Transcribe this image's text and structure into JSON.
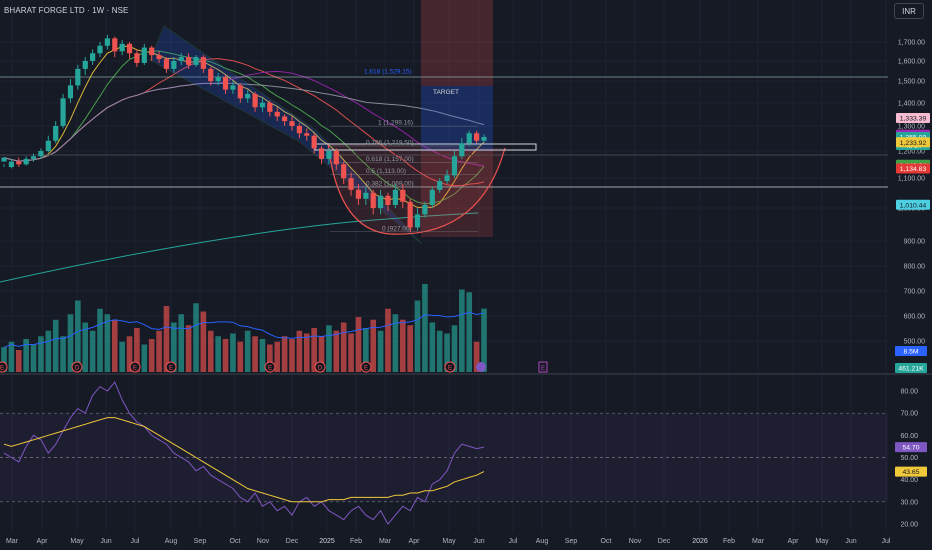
{
  "header": {
    "title": "BHARAT FORGE LTD · 1W · NSE",
    "currency": "INR"
  },
  "colors": {
    "up": "#26a69a",
    "down": "#ef5350",
    "bg": "#161a25",
    "grid": "#1f2330",
    "text": "#b2b5be",
    "fib": "#2962ff",
    "rsi": "#7e57c2",
    "rsi_ma": "#f0c93a"
  },
  "chart_data": {
    "type": "candlestick",
    "title": "BHARAT FORGE LTD · 1W · NSE",
    "x_ticks": [
      "Mar",
      "Apr",
      "May",
      "Jun",
      "Jul",
      "Aug",
      "Sep",
      "Oct",
      "Nov",
      "Dec",
      "2025",
      "Feb",
      "Mar",
      "Apr",
      "May",
      "Jun",
      "Jul",
      "Aug",
      "Sep",
      "Oct",
      "Nov",
      "Dec",
      "2026",
      "Feb",
      "Mar",
      "Apr",
      "May",
      "Jun",
      "Jul"
    ],
    "price_ticks": [
      "1,700.00",
      "1,600.00",
      "1,500.00",
      "1,400.00",
      "1,300.00",
      "1,200.00",
      "1,100.00",
      "1,000.00",
      "900.00",
      "800.00",
      "700.00",
      "600.00",
      "500.00"
    ],
    "price_range": [
      895,
      1730
    ],
    "scale": "log",
    "price_labels": [
      {
        "text": "1,333.39",
        "v": 1333.39,
        "color": "#f8bbd0",
        "fg": "#131722"
      },
      {
        "text": "1,264.31",
        "v": 1264.31,
        "color": "#9c27b0",
        "fg": "#ffffff"
      },
      {
        "text": "1,255.00",
        "v": 1255.0,
        "color": "#26a69a",
        "fg": "#ffffff",
        "sub": "4d 5h"
      },
      {
        "text": "1,233.92",
        "v": 1233.92,
        "color": "#f0c93a",
        "fg": "#131722"
      },
      {
        "text": "1,148.24",
        "v": 1148.24,
        "color": "#43a047",
        "fg": "#ffffff"
      },
      {
        "text": "1,134.83",
        "v": 1134.83,
        "color": "#e53935",
        "fg": "#ffffff"
      },
      {
        "text": "1,010.44",
        "v": 1010.44,
        "color": "#4dd0e1",
        "fg": "#131722"
      }
    ],
    "fib_labels": [
      {
        "text": "1.618 (1,529.15)",
        "v": 1529.15,
        "color": "#2962ff"
      },
      {
        "text": "1 (1,299.16)",
        "v": 1299.16,
        "color": "#9598a1"
      },
      {
        "text": "0.786 (1,219.50)",
        "v": 1219.5,
        "color": "#9598a1"
      },
      {
        "text": "0.618 (1,157.00)",
        "v": 1157.0,
        "color": "#9598a1"
      },
      {
        "text": "0.5 (1,113.00)",
        "v": 1113.0,
        "color": "#9598a1"
      },
      {
        "text": "0.382 (1,069.00)",
        "v": 1069.0,
        "color": "#9598a1"
      },
      {
        "text": "0 (927.00)",
        "v": 927.0,
        "color": "#9598a1"
      }
    ],
    "target_label": "TARGET",
    "horizontal_levels": [
      1520,
      1255,
      1158
    ],
    "candles": [
      [
        1160,
        1175,
        1150,
        1140
      ],
      [
        1140,
        1160,
        1170,
        1135
      ],
      [
        1160,
        1150,
        1175,
        1140
      ],
      [
        1150,
        1170,
        1180,
        1145
      ],
      [
        1170,
        1180,
        1190,
        1160
      ],
      [
        1180,
        1200,
        1210,
        1170
      ],
      [
        1200,
        1240,
        1260,
        1195
      ],
      [
        1240,
        1300,
        1320,
        1230
      ],
      [
        1300,
        1420,
        1440,
        1290
      ],
      [
        1420,
        1480,
        1510,
        1400
      ],
      [
        1480,
        1560,
        1580,
        1460
      ],
      [
        1560,
        1600,
        1620,
        1530
      ],
      [
        1600,
        1640,
        1660,
        1580
      ],
      [
        1640,
        1680,
        1700,
        1620
      ],
      [
        1680,
        1720,
        1740,
        1660
      ],
      [
        1720,
        1650,
        1730,
        1620
      ],
      [
        1650,
        1690,
        1710,
        1630
      ],
      [
        1690,
        1640,
        1700,
        1610
      ],
      [
        1640,
        1590,
        1660,
        1570
      ],
      [
        1590,
        1670,
        1690,
        1580
      ],
      [
        1670,
        1630,
        1680,
        1600
      ],
      [
        1630,
        1610,
        1650,
        1590
      ],
      [
        1610,
        1560,
        1620,
        1540
      ],
      [
        1560,
        1600,
        1620,
        1540
      ],
      [
        1600,
        1620,
        1640,
        1580
      ],
      [
        1620,
        1580,
        1640,
        1560
      ],
      [
        1580,
        1620,
        1630,
        1570
      ],
      [
        1620,
        1560,
        1630,
        1540
      ],
      [
        1560,
        1500,
        1570,
        1480
      ],
      [
        1500,
        1520,
        1540,
        1480
      ],
      [
        1520,
        1460,
        1530,
        1440
      ],
      [
        1460,
        1480,
        1500,
        1440
      ],
      [
        1480,
        1420,
        1490,
        1400
      ],
      [
        1420,
        1440,
        1460,
        1400
      ],
      [
        1440,
        1380,
        1450,
        1360
      ],
      [
        1380,
        1400,
        1420,
        1360
      ],
      [
        1400,
        1360,
        1410,
        1340
      ],
      [
        1360,
        1340,
        1380,
        1320
      ],
      [
        1340,
        1320,
        1350,
        1300
      ],
      [
        1320,
        1300,
        1340,
        1280
      ],
      [
        1300,
        1270,
        1310,
        1250
      ],
      [
        1270,
        1260,
        1290,
        1240
      ],
      [
        1260,
        1210,
        1270,
        1190
      ],
      [
        1210,
        1170,
        1220,
        1150
      ],
      [
        1170,
        1200,
        1210,
        1150
      ],
      [
        1200,
        1150,
        1210,
        1130
      ],
      [
        1150,
        1100,
        1160,
        1080
      ],
      [
        1100,
        1060,
        1120,
        1040
      ],
      [
        1060,
        1030,
        1080,
        1010
      ],
      [
        1030,
        1050,
        1070,
        1010
      ],
      [
        1050,
        1000,
        1060,
        980
      ],
      [
        1000,
        1040,
        1060,
        980
      ],
      [
        1040,
        1010,
        1050,
        990
      ],
      [
        1010,
        1060,
        1080,
        1000
      ],
      [
        1060,
        1020,
        1080,
        1000
      ],
      [
        1020,
        940,
        1030,
        927
      ],
      [
        940,
        980,
        1000,
        930
      ],
      [
        980,
        1010,
        1020,
        970
      ],
      [
        1010,
        1060,
        1070,
        1000
      ],
      [
        1060,
        1090,
        1100,
        1050
      ],
      [
        1090,
        1110,
        1130,
        1080
      ],
      [
        1110,
        1180,
        1200,
        1100
      ],
      [
        1180,
        1230,
        1250,
        1170
      ],
      [
        1230,
        1270,
        1280,
        1220
      ],
      [
        1270,
        1240,
        1280,
        1230
      ],
      [
        1240,
        1255,
        1265,
        1235
      ]
    ],
    "volume_k": [
      180,
      220,
      160,
      240,
      200,
      260,
      300,
      380,
      260,
      420,
      520,
      360,
      300,
      460,
      420,
      380,
      220,
      260,
      320,
      200,
      240,
      300,
      480,
      360,
      420,
      340,
      500,
      440,
      300,
      260,
      240,
      280,
      220,
      300,
      260,
      240,
      200,
      220,
      260,
      240,
      300,
      280,
      320,
      260,
      340,
      300,
      360,
      280,
      400,
      320,
      380,
      300,
      460,
      420,
      380,
      340,
      520,
      640,
      360,
      300,
      280,
      340,
      600,
      580,
      220,
      461
    ],
    "volume_labels": [
      "8.5M",
      "461.21K"
    ],
    "rsi": [
      52,
      50,
      48,
      55,
      60,
      58,
      52,
      56,
      62,
      68,
      72,
      70,
      78,
      82,
      80,
      84,
      76,
      70,
      66,
      64,
      60,
      58,
      56,
      52,
      50,
      48,
      44,
      46,
      42,
      40,
      38,
      36,
      32,
      30,
      34,
      28,
      30,
      26,
      28,
      24,
      30,
      32,
      28,
      30,
      26,
      24,
      22,
      26,
      28,
      24,
      22,
      26,
      20,
      24,
      28,
      26,
      32,
      30,
      38,
      40,
      44,
      52,
      56,
      55,
      54,
      54.7
    ],
    "rsi_ma": [
      56,
      55,
      56,
      57,
      58,
      59,
      60,
      61,
      62,
      63,
      64,
      65,
      66,
      67,
      68,
      68,
      67,
      66,
      65,
      64,
      62,
      60,
      58,
      56,
      54,
      52,
      50,
      48,
      46,
      44,
      42,
      40,
      38,
      36,
      35,
      34,
      33,
      32,
      31,
      30,
      30,
      30,
      30,
      30,
      31,
      31,
      31,
      32,
      32,
      32,
      32,
      32,
      32,
      33,
      33,
      34,
      34,
      35,
      35,
      36,
      37,
      39,
      40,
      41,
      42,
      43.65
    ],
    "rsi_ticks": [
      "80.00",
      "70.00",
      "60.00",
      "50.00",
      "40.00",
      "30.00",
      "20.00"
    ],
    "rsi_labels": [
      {
        "text": "54.70",
        "v": 54.7,
        "color": "#7e57c2"
      },
      {
        "text": "43.65",
        "v": 43.65,
        "color": "#f0c93a"
      }
    ],
    "event_markers": [
      "E",
      "D",
      "E",
      "E",
      "E",
      "D",
      "E",
      "E"
    ]
  }
}
